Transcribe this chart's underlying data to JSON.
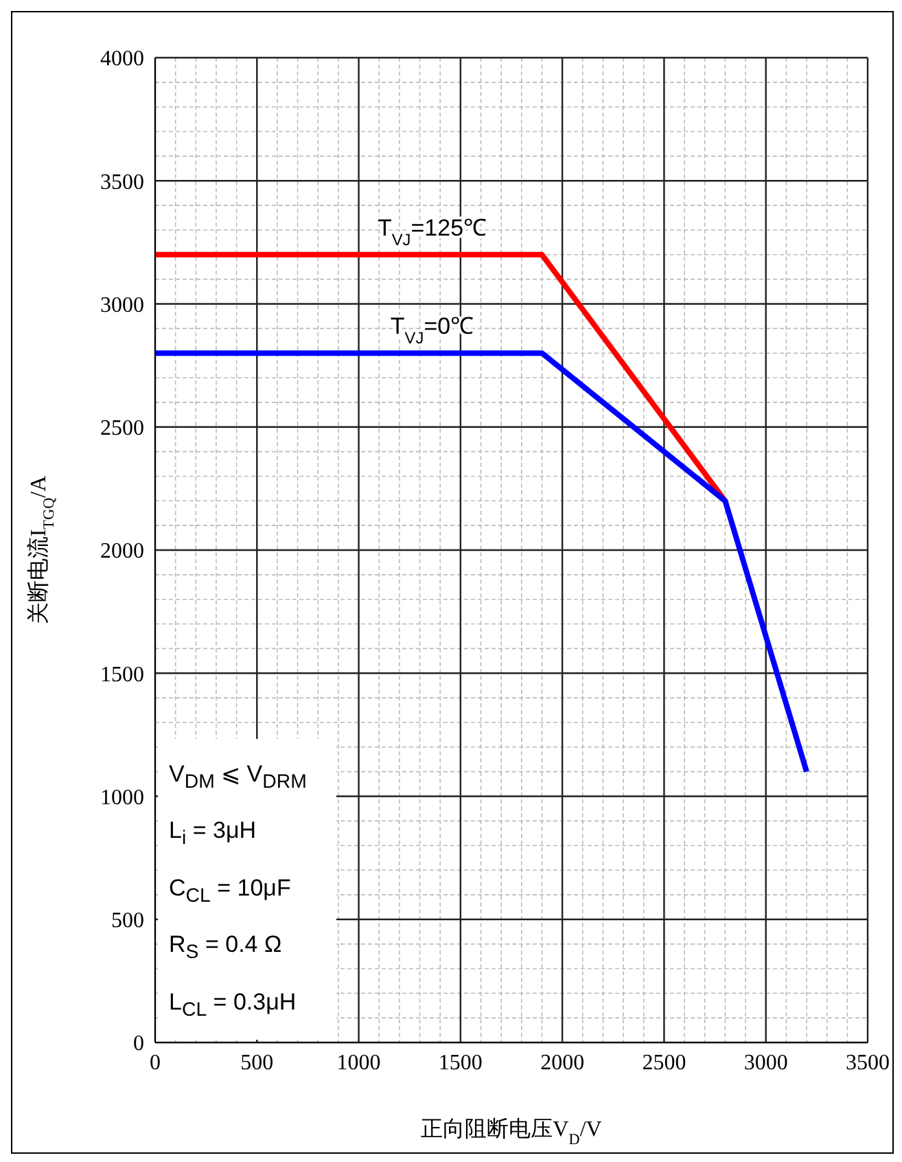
{
  "chart_data": {
    "type": "line",
    "xlabel": "正向阻断电压V$_{D}$/V",
    "ylabel": "关断电流I$_{TGQ}$/A",
    "xlim": [
      0,
      3500
    ],
    "xticks": [
      0,
      500,
      1000,
      1500,
      2000,
      2500,
      3000,
      3500
    ],
    "ylim": [
      0,
      4000
    ],
    "yticks": [
      0,
      500,
      1000,
      1500,
      2000,
      2500,
      3000,
      3500,
      4000
    ],
    "grid": true,
    "legend": false,
    "marker": "none",
    "line_style": "solid",
    "series": [
      {
        "name": "T$_{VJ}$=125℃",
        "color": "#ff0000",
        "x": [
          0,
          1900,
          2800
        ],
        "values": [
          3200,
          3200,
          2200
        ]
      },
      {
        "name": "T$_{VJ}$=0℃",
        "color": "#0000ff",
        "x": [
          0,
          1900,
          2800,
          3200
        ],
        "values": [
          2800,
          2800,
          2200,
          1100
        ]
      }
    ],
    "annotations": [
      "V$_{DM}$ ⩽ V$_{DRM}$",
      "L$_{i}$ = 3μH",
      "C$_{CL}$ = 10μF",
      "R$_{S}$ = 0.4 Ω",
      "L$_{CL}$ = 0.3μH"
    ]
  }
}
